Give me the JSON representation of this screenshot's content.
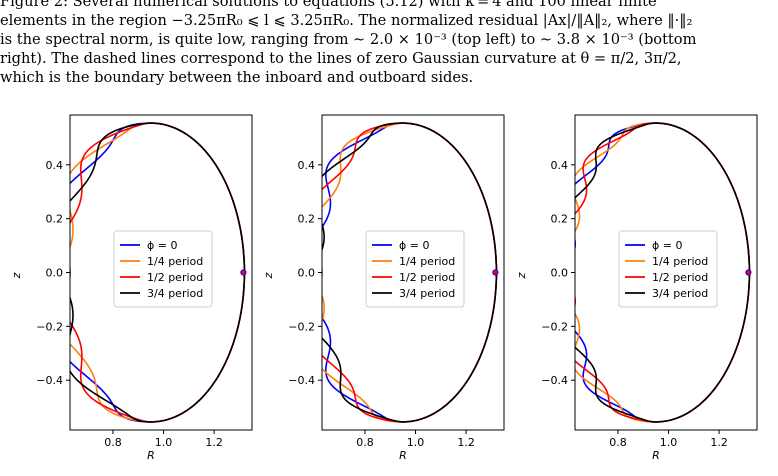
{
  "caption": {
    "line1": "Figure 2: Several numerical solutions to equations (5.12) with k = 4 and 100 linear finite",
    "line2": "elements in the region −3.25πR₀ ⩽ l ⩽ 3.25πR₀. The normalized residual |Ax|/‖A‖₂, where ‖·‖₂",
    "line3": "is the spectral norm, is quite low, ranging from ∼ 2.0 × 10⁻³ (top left) to ∼ 3.8 × 10⁻³ (bottom",
    "line4": "right). The dashed lines correspond to the lines of zero Gaussian curvature at θ = π/2, 3π/2,",
    "line5": "which is the boundary between the inboard and outboard sides."
  },
  "chart_data": [
    {
      "type": "line",
      "xlabel": "R",
      "ylabel": "z",
      "xlim": [
        0.63,
        1.35
      ],
      "ylim": [
        -0.585,
        0.585
      ],
      "xticks": [
        0.8,
        1.0,
        1.2
      ],
      "xtick_labels": [
        "0.8",
        "1.0",
        "1.2"
      ],
      "yticks": [
        -0.4,
        -0.2,
        0.0,
        0.2,
        0.4
      ],
      "ytick_labels": [
        "−0.4",
        "−0.2",
        "0.0",
        "0.2",
        "0.4"
      ],
      "legend": "center",
      "grid": false,
      "boundary": {
        "R0": 0.95,
        "a": 0.37,
        "kappa": 1.5
      },
      "inboard_wave": {
        "amplitude": 0.05,
        "wavenumber": 6.5
      },
      "series": [
        {
          "name": "ϕ = 0",
          "color": "#0000ff",
          "phase": 0.0
        },
        {
          "name": "1/4 period",
          "color": "#ff7f0e",
          "phase": 1.5708
        },
        {
          "name": "1/2 period",
          "color": "#ff0000",
          "phase": 3.1416
        },
        {
          "name": "3/4 period",
          "color": "#000000",
          "phase": 4.7124
        }
      ]
    },
    {
      "type": "line",
      "xlabel": "R",
      "ylabel": "z",
      "xlim": [
        0.63,
        1.35
      ],
      "ylim": [
        -0.585,
        0.585
      ],
      "xticks": [
        0.8,
        1.0,
        1.2
      ],
      "xtick_labels": [
        "0.8",
        "1.0",
        "1.2"
      ],
      "yticks": [
        -0.4,
        -0.2,
        0.0,
        0.2,
        0.4
      ],
      "ytick_labels": [
        "−0.4",
        "−0.2",
        "0.0",
        "0.2",
        "0.4"
      ],
      "legend": "center",
      "grid": false,
      "boundary": {
        "R0": 0.95,
        "a": 0.37,
        "kappa": 1.5
      },
      "inboard_wave": {
        "amplitude": 0.05,
        "wavenumber": 7.5
      },
      "series": [
        {
          "name": "ϕ = 0",
          "color": "#0000ff",
          "phase": 0.0
        },
        {
          "name": "1/4 period",
          "color": "#ff7f0e",
          "phase": 1.5708
        },
        {
          "name": "1/2 period",
          "color": "#ff0000",
          "phase": 3.1416
        },
        {
          "name": "3/4 period",
          "color": "#000000",
          "phase": 4.7124
        }
      ]
    },
    {
      "type": "line",
      "xlabel": "R",
      "ylabel": "z",
      "xlim": [
        0.63,
        1.35
      ],
      "ylim": [
        -0.585,
        0.585
      ],
      "xticks": [
        0.8,
        1.0,
        1.2
      ],
      "xtick_labels": [
        "0.8",
        "1.0",
        "1.2"
      ],
      "yticks": [
        -0.4,
        -0.2,
        0.0,
        0.2,
        0.4
      ],
      "ytick_labels": [
        "−0.4",
        "−0.2",
        "0.0",
        "0.2",
        "0.4"
      ],
      "legend": "center",
      "grid": false,
      "boundary": {
        "R0": 0.95,
        "a": 0.37,
        "kappa": 1.5
      },
      "inboard_wave": {
        "amplitude": 0.045,
        "wavenumber": 9.0
      },
      "series": [
        {
          "name": "ϕ = 0",
          "color": "#0000ff",
          "phase": 0.0
        },
        {
          "name": "1/4 period",
          "color": "#ff7f0e",
          "phase": 1.5708
        },
        {
          "name": "1/2 period",
          "color": "#ff0000",
          "phase": 3.1416
        },
        {
          "name": "3/4 period",
          "color": "#000000",
          "phase": 4.7124
        }
      ]
    }
  ]
}
